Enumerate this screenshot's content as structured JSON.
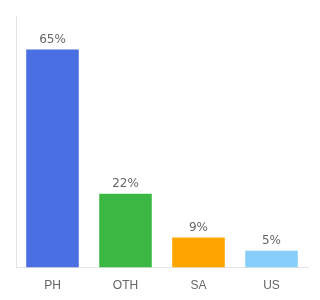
{
  "chart_data": {
    "type": "bar",
    "categories": [
      "PH",
      "OTH",
      "SA",
      "US"
    ],
    "values": [
      65,
      22,
      9,
      5
    ],
    "value_labels": [
      "65%",
      "22%",
      "9%",
      "5%"
    ],
    "colors": [
      "#4A6FE3",
      "#3BB843",
      "#FFA500",
      "#87CEFA"
    ],
    "ylim": [
      0,
      75
    ],
    "data_labels": true,
    "tick_labels": "x",
    "grid": false
  }
}
